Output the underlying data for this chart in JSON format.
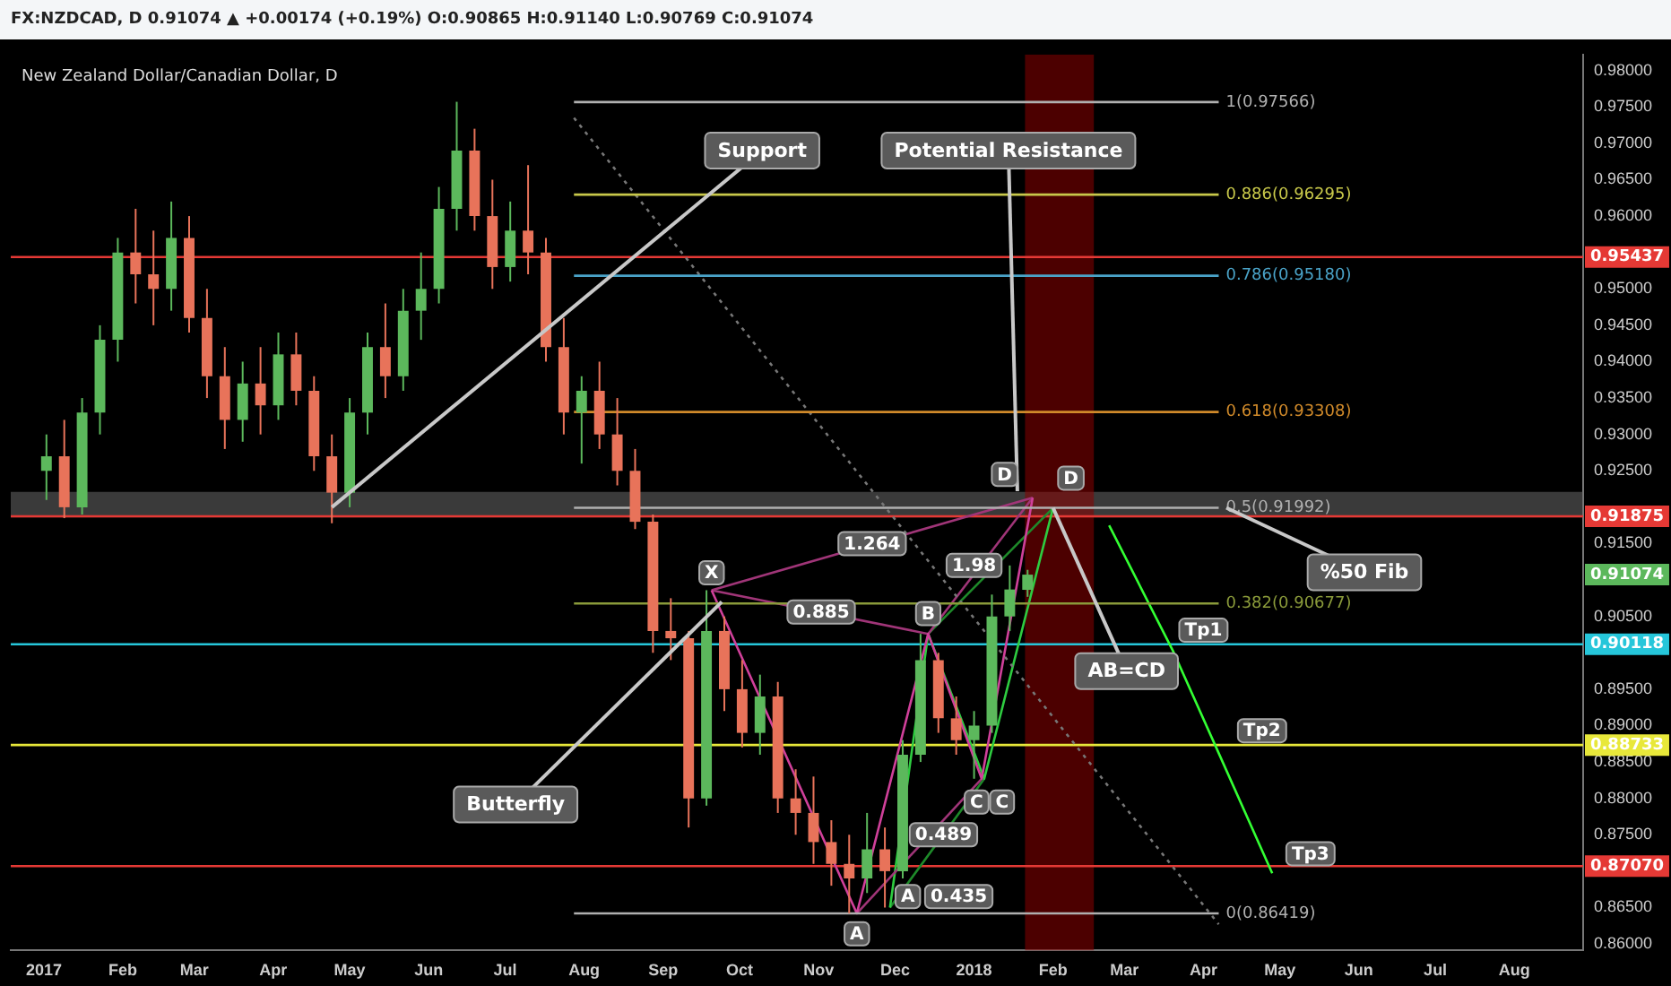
{
  "chart_data": {
    "type": "candlestick",
    "title": "New Zealand Dollar/Canadian Dollar, D",
    "annotations": [
      "FX:NZDCAD, D 0.91074 ▲ +0.00174 (+0.19%) O:0.90865 H:0.91140 L:0.90769 C:0.91074",
      {
        "text": "Support",
        "x": "2017-04-24",
        "y": 0.92
      },
      {
        "text": "Potential Resistance",
        "x": "2018-01-18",
        "y": 0.9222
      },
      {
        "text": "Butterfly",
        "x": "2017-09-24",
        "y": 0.907
      },
      {
        "text": "%50 Fib",
        "x": "2018-04-10",
        "y": 0.91992
      },
      {
        "text": "AB=CD",
        "x": "2018-02-01",
        "y": 0.9199
      },
      {
        "text": "Tp1",
        "x": "2018-04-01",
        "y": 0.9031
      },
      {
        "text": "Tp2",
        "x": "2018-04-24",
        "y": 0.8893
      },
      {
        "text": "Tp3",
        "x": "2018-05-13",
        "y": 0.8724
      },
      {
        "text": "X",
        "x": "2017-09-20",
        "y": 0.911
      },
      {
        "text": "A",
        "x": "2017-11-16",
        "y": 0.8614
      },
      {
        "text": "C",
        "x": "2018-01-02",
        "y": 0.8795
      },
      {
        "text": "D",
        "x": "2018-01-13",
        "y": 0.9245
      },
      {
        "text": "A",
        "x": "2017-12-06",
        "y": 0.8665
      },
      {
        "text": "B",
        "x": "2017-12-14",
        "y": 0.9054
      },
      {
        "text": "C",
        "x": "2018-01-12",
        "y": 0.8795
      },
      {
        "text": "D",
        "x": "2018-02-08",
        "y": 0.924
      },
      {
        "text": "1.264",
        "x": "2017-11-22",
        "y": 0.915
      },
      {
        "text": "0.885",
        "x": "2017-11-02",
        "y": 0.9056
      },
      {
        "text": "1.98",
        "x": "2018-01-01",
        "y": 0.912
      },
      {
        "text": "0.489",
        "x": "2017-12-20",
        "y": 0.875
      },
      {
        "text": "0.435",
        "x": "2017-12-26",
        "y": 0.8665
      }
    ],
    "series": [
      {
        "x": [
          "2017-01-02",
          "2017-01-09",
          "2017-01-16",
          "2017-01-23",
          "2017-01-30",
          "2017-02-06",
          "2017-02-13",
          "2017-02-20",
          "2017-02-27",
          "2017-03-06",
          "2017-03-13",
          "2017-03-20",
          "2017-03-27",
          "2017-04-03",
          "2017-04-10",
          "2017-04-17",
          "2017-04-24",
          "2017-05-01",
          "2017-05-08",
          "2017-05-15",
          "2017-05-22",
          "2017-05-29",
          "2017-06-05",
          "2017-06-12",
          "2017-06-19",
          "2017-06-26",
          "2017-07-03",
          "2017-07-10",
          "2017-07-17",
          "2017-07-24",
          "2017-07-31",
          "2017-08-07",
          "2017-08-14",
          "2017-08-21",
          "2017-08-28",
          "2017-09-04",
          "2017-09-11",
          "2017-09-18",
          "2017-09-25",
          "2017-10-02",
          "2017-10-09",
          "2017-10-16",
          "2017-10-23",
          "2017-10-30",
          "2017-11-06",
          "2017-11-13",
          "2017-11-20",
          "2017-11-27",
          "2017-12-04",
          "2017-12-11",
          "2017-12-18",
          "2017-12-25",
          "2018-01-01",
          "2018-01-08",
          "2018-01-15",
          "2018-01-22"
        ],
        "ohlc": [
          [
            0.925,
            0.93,
            0.921,
            0.927
          ],
          [
            0.927,
            0.932,
            0.9185,
            0.92
          ],
          [
            0.92,
            0.935,
            0.919,
            0.933
          ],
          [
            0.933,
            0.945,
            0.93,
            0.943
          ],
          [
            0.943,
            0.957,
            0.94,
            0.955
          ],
          [
            0.955,
            0.961,
            0.948,
            0.952
          ],
          [
            0.952,
            0.958,
            0.945,
            0.95
          ],
          [
            0.95,
            0.962,
            0.947,
            0.957
          ],
          [
            0.957,
            0.96,
            0.944,
            0.946
          ],
          [
            0.946,
            0.95,
            0.935,
            0.938
          ],
          [
            0.938,
            0.942,
            0.928,
            0.932
          ],
          [
            0.932,
            0.94,
            0.929,
            0.937
          ],
          [
            0.937,
            0.942,
            0.93,
            0.934
          ],
          [
            0.934,
            0.944,
            0.932,
            0.941
          ],
          [
            0.941,
            0.944,
            0.934,
            0.936
          ],
          [
            0.936,
            0.938,
            0.925,
            0.927
          ],
          [
            0.927,
            0.93,
            0.9178,
            0.922
          ],
          [
            0.922,
            0.935,
            0.92,
            0.933
          ],
          [
            0.933,
            0.944,
            0.93,
            0.942
          ],
          [
            0.942,
            0.948,
            0.935,
            0.938
          ],
          [
            0.938,
            0.95,
            0.936,
            0.947
          ],
          [
            0.947,
            0.955,
            0.943,
            0.95
          ],
          [
            0.95,
            0.964,
            0.948,
            0.961
          ],
          [
            0.961,
            0.9757,
            0.958,
            0.969
          ],
          [
            0.969,
            0.972,
            0.958,
            0.96
          ],
          [
            0.96,
            0.965,
            0.95,
            0.953
          ],
          [
            0.953,
            0.962,
            0.951,
            0.958
          ],
          [
            0.958,
            0.967,
            0.952,
            0.955
          ],
          [
            0.955,
            0.957,
            0.94,
            0.942
          ],
          [
            0.942,
            0.946,
            0.93,
            0.933
          ],
          [
            0.933,
            0.938,
            0.926,
            0.936
          ],
          [
            0.936,
            0.94,
            0.928,
            0.93
          ],
          [
            0.93,
            0.935,
            0.923,
            0.925
          ],
          [
            0.925,
            0.928,
            0.917,
            0.918
          ],
          [
            0.918,
            0.919,
            0.9,
            0.903
          ],
          [
            0.903,
            0.9075,
            0.899,
            0.902
          ],
          [
            0.902,
            0.903,
            0.876,
            0.88
          ],
          [
            0.88,
            0.9086,
            0.879,
            0.903
          ],
          [
            0.903,
            0.905,
            0.892,
            0.895
          ],
          [
            0.895,
            0.899,
            0.887,
            0.889
          ],
          [
            0.889,
            0.897,
            0.886,
            0.894
          ],
          [
            0.894,
            0.896,
            0.878,
            0.88
          ],
          [
            0.88,
            0.884,
            0.875,
            0.878
          ],
          [
            0.878,
            0.883,
            0.871,
            0.874
          ],
          [
            0.874,
            0.877,
            0.868,
            0.871
          ],
          [
            0.871,
            0.875,
            0.8642,
            0.869
          ],
          [
            0.869,
            0.878,
            0.867,
            0.873
          ],
          [
            0.873,
            0.876,
            0.865,
            0.87
          ],
          [
            0.87,
            0.888,
            0.869,
            0.886
          ],
          [
            0.886,
            0.9026,
            0.885,
            0.899
          ],
          [
            0.899,
            0.9,
            0.889,
            0.891
          ],
          [
            0.891,
            0.894,
            0.886,
            0.888
          ],
          [
            0.888,
            0.892,
            0.8827,
            0.89
          ],
          [
            0.89,
            0.908,
            0.889,
            0.905
          ],
          [
            0.905,
            0.912,
            0.903,
            0.9087
          ],
          [
            0.90865,
            0.9114,
            0.90769,
            0.91074
          ]
        ],
        "colors": [
          "#5cb85c",
          "#e8735a",
          "#5cb85c",
          "#5cb85c",
          "#5cb85c",
          "#e8735a",
          "#e8735a",
          "#5cb85c",
          "#e8735a",
          "#e8735a",
          "#e8735a",
          "#5cb85c",
          "#e8735a",
          "#5cb85c",
          "#e8735a",
          "#e8735a",
          "#e8735a",
          "#5cb85c",
          "#5cb85c",
          "#e8735a",
          "#5cb85c",
          "#5cb85c",
          "#5cb85c",
          "#5cb85c",
          "#e8735a",
          "#e8735a",
          "#5cb85c",
          "#e8735a",
          "#e8735a",
          "#e8735a",
          "#5cb85c",
          "#e8735a",
          "#e8735a",
          "#e8735a",
          "#e8735a",
          "#e8735a",
          "#e8735a",
          "#5cb85c",
          "#e8735a",
          "#e8735a",
          "#5cb85c",
          "#e8735a",
          "#e8735a",
          "#e8735a",
          "#e8735a",
          "#e8735a",
          "#5cb85c",
          "#e8735a",
          "#5cb85c",
          "#5cb85c",
          "#e8735a",
          "#e8735a",
          "#5cb85c",
          "#5cb85c",
          "#5cb85c",
          "#5cb85c"
        ],
        "value_labels": [
          null,
          null,
          null,
          null,
          null,
          null,
          null,
          null,
          null,
          null,
          null,
          null,
          null,
          null,
          null,
          null,
          null,
          null,
          null,
          null,
          null,
          null,
          null,
          null,
          null,
          null,
          null,
          null,
          null,
          null,
          null,
          null,
          null,
          null,
          null,
          null,
          null,
          null,
          null,
          null,
          null,
          null,
          null,
          null,
          null,
          null,
          null,
          null,
          null,
          null,
          null,
          null,
          null,
          null,
          null,
          "0.91074"
        ]
      },
      {
        "type": "line",
        "name": "1(0.97566)",
        "color": "#b0b0b0",
        "x": [
          "2017-07-28",
          "2018-04-07"
        ],
        "values": [
          0.97566,
          0.97566
        ]
      },
      {
        "type": "line",
        "name": "0.886(0.96295)",
        "color": "#c8c84a",
        "x": [
          "2017-07-28",
          "2018-04-07"
        ],
        "values": [
          0.96295,
          0.96295
        ]
      },
      {
        "type": "line",
        "name": "0.786(0.95180)",
        "color": "#4aa3c8",
        "x": [
          "2017-07-28",
          "2018-04-07"
        ],
        "values": [
          0.9518,
          0.9518
        ]
      },
      {
        "type": "line",
        "name": "0.618(0.93308)",
        "color": "#d08a2a",
        "x": [
          "2017-07-28",
          "2018-04-07"
        ],
        "values": [
          0.93308,
          0.93308
        ]
      },
      {
        "type": "line",
        "name": "0.5(0.91992)",
        "color": "#b0b0b0",
        "x": [
          "2017-07-28",
          "2018-04-07"
        ],
        "values": [
          0.91992,
          0.91992
        ]
      },
      {
        "type": "line",
        "name": "0.382(0.90677)",
        "color": "#8a9a3a",
        "x": [
          "2017-07-28",
          "2018-04-07"
        ],
        "values": [
          0.90677,
          0.90677
        ]
      },
      {
        "type": "line",
        "name": "0(0.86419)",
        "color": "#b0b0b0",
        "x": [
          "2017-07-28",
          "2018-04-07"
        ],
        "values": [
          0.86419,
          0.86419
        ]
      },
      {
        "type": "line",
        "color": "#777777",
        "line_style": "dotted",
        "x": [
          "2017-07-28",
          "2018-04-07"
        ],
        "values": [
          0.9735,
          0.8627
        ]
      },
      {
        "type": "line",
        "color": "#d0409a",
        "x": [
          "2017-09-20",
          "2017-11-16",
          "2017-12-14",
          "2018-01-04",
          "2018-01-24"
        ],
        "values": [
          0.9086,
          0.8642,
          0.9026,
          0.8827,
          0.9213
        ]
      },
      {
        "type": "line",
        "color": "#a03578",
        "x": [
          "2017-09-20",
          "2017-12-14"
        ],
        "values": [
          0.9086,
          0.9026
        ]
      },
      {
        "type": "line",
        "color": "#a03578",
        "x": [
          "2017-09-20",
          "2018-01-24"
        ],
        "values": [
          0.9086,
          0.9213
        ]
      },
      {
        "type": "line",
        "color": "#a03578",
        "x": [
          "2017-11-16",
          "2018-01-04"
        ],
        "values": [
          0.8642,
          0.8827
        ]
      },
      {
        "type": "line",
        "color": "#a03578",
        "x": [
          "2017-12-14",
          "2018-01-24"
        ],
        "values": [
          0.9026,
          0.9213
        ]
      },
      {
        "type": "line",
        "color": "#2ecc40",
        "x": [
          "2017-11-29",
          "2017-12-14",
          "2018-01-05",
          "2018-02-01"
        ],
        "values": [
          0.865,
          0.9026,
          0.8827,
          0.9199
        ]
      },
      {
        "type": "line",
        "color": "#1e8a2a",
        "x": [
          "2017-11-29",
          "2018-01-05"
        ],
        "values": [
          0.865,
          0.8827
        ]
      },
      {
        "type": "line",
        "color": "#1e8a2a",
        "x": [
          "2017-12-14",
          "2018-02-01"
        ],
        "values": [
          0.9026,
          0.9199
        ]
      },
      {
        "type": "line",
        "color": "#33ff33",
        "x": [
          "2018-02-23",
          "2018-03-20",
          "2018-04-06",
          "2018-04-28"
        ],
        "values": [
          0.9175,
          0.9003,
          0.887,
          0.8697
        ]
      }
    ],
    "ref_lines": [
      {
        "axis": "y",
        "value": 0.95437,
        "label": "0.95437",
        "color": "#e53935"
      },
      {
        "axis": "y",
        "value": 0.91875,
        "label": "0.91875",
        "color": "#e53935"
      },
      {
        "axis": "y",
        "value": 0.90118,
        "label": "0.90118",
        "color": "#26c6da"
      },
      {
        "axis": "y",
        "value": 0.88733,
        "label": "0.88733",
        "color": "#e8e83a"
      },
      {
        "axis": "y",
        "value": 0.8707,
        "label": "0.87070",
        "color": "#e53935"
      }
    ],
    "bands": [
      {
        "axis": "y",
        "from": 0.9186,
        "to": 0.9221,
        "color": "#6a6a6a"
      },
      {
        "axis": "x",
        "from": "2018-01-21",
        "to": "2018-02-17",
        "color": "#8b0000"
      }
    ],
    "xlim": [
      "2016-12-19",
      "2018-08-28"
    ],
    "xticks": [
      {
        "value": "2017-01",
        "label": "2017"
      },
      {
        "value": "2017-02",
        "label": "Feb"
      },
      {
        "value": "2017-03",
        "label": "Mar"
      },
      {
        "value": "2017-04",
        "label": "Apr"
      },
      {
        "value": "2017-05",
        "label": "May"
      },
      {
        "value": "2017-06",
        "label": "Jun"
      },
      {
        "value": "2017-07",
        "label": "Jul"
      },
      {
        "value": "2017-08",
        "label": "Aug"
      },
      {
        "value": "2017-09",
        "label": "Sep"
      },
      {
        "value": "2017-10",
        "label": "Oct"
      },
      {
        "value": "2017-11",
        "label": "Nov"
      },
      {
        "value": "2017-12",
        "label": "Dec"
      },
      {
        "value": "2018-01",
        "label": "2018"
      },
      {
        "value": "2018-02",
        "label": "Feb"
      },
      {
        "value": "2018-03",
        "label": "Mar"
      },
      {
        "value": "2018-04",
        "label": "Apr"
      },
      {
        "value": "2018-05",
        "label": "May"
      },
      {
        "value": "2018-06",
        "label": "Jun"
      },
      {
        "value": "2018-07",
        "label": "Jul"
      },
      {
        "value": "2018-08",
        "label": "Aug"
      }
    ],
    "ylim": [
      0.8591,
      0.9822
    ],
    "yticks": [
      {
        "value": 0.86,
        "label": "0.86000"
      },
      {
        "value": 0.865,
        "label": "0.86500"
      },
      {
        "value": 0.875,
        "label": "0.87500"
      },
      {
        "value": 0.88,
        "label": "0.88000"
      },
      {
        "value": 0.885,
        "label": "0.88500"
      },
      {
        "value": 0.89,
        "label": "0.89000"
      },
      {
        "value": 0.895,
        "label": "0.89500"
      },
      {
        "value": 0.905,
        "label": "0.90500"
      },
      {
        "value": 0.915,
        "label": "0.91500"
      },
      {
        "value": 0.925,
        "label": "0.92500"
      },
      {
        "value": 0.93,
        "label": "0.93000"
      },
      {
        "value": 0.935,
        "label": "0.93500"
      },
      {
        "value": 0.94,
        "label": "0.94000"
      },
      {
        "value": 0.945,
        "label": "0.94500"
      },
      {
        "value": 0.95,
        "label": "0.95000"
      },
      {
        "value": 0.96,
        "label": "0.96000"
      },
      {
        "value": 0.965,
        "label": "0.96500"
      },
      {
        "value": 0.97,
        "label": "0.97000"
      },
      {
        "value": 0.975,
        "label": "0.97500"
      },
      {
        "value": 0.98,
        "label": "0.98000"
      }
    ],
    "grid": false,
    "marker": "none",
    "line_style": "solid"
  }
}
